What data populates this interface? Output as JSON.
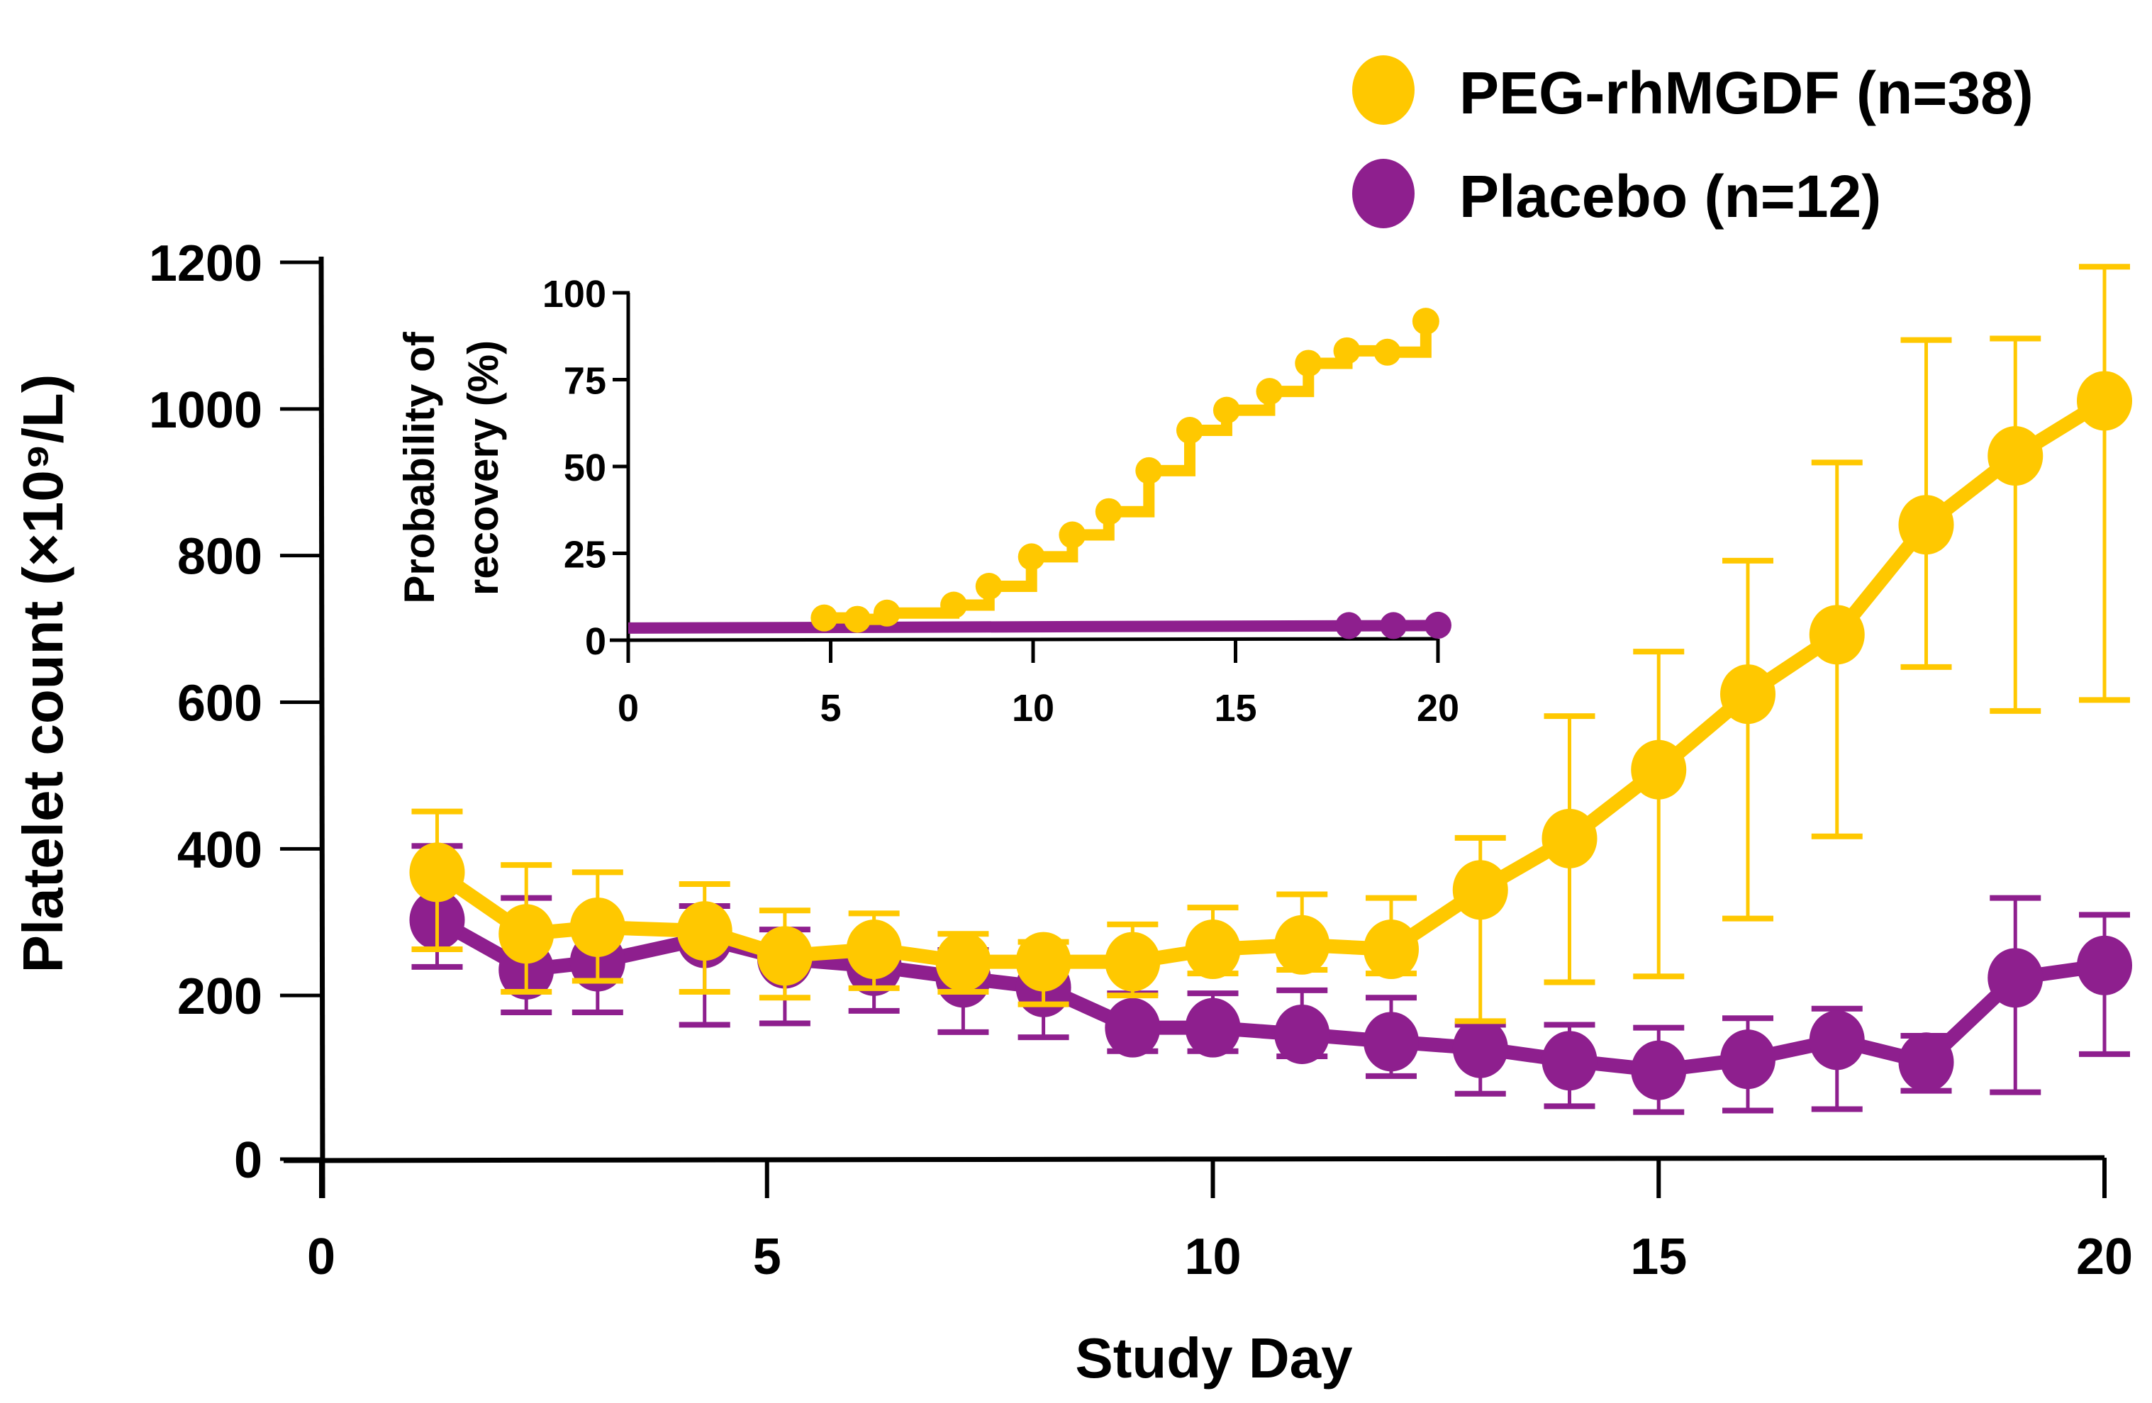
{
  "colors": {
    "peg": "#FFC800",
    "placebo": "#8E1F8E",
    "axis": "#000000"
  },
  "legend": {
    "position": "top-right",
    "items": [
      {
        "label": "PEG-rhMGDF (n=38)",
        "series": "peg",
        "marker": "filled-circle"
      },
      {
        "label": "Placebo (n=12)",
        "series": "placebo",
        "marker": "filled-circle"
      }
    ]
  },
  "chart_data": [
    {
      "id": "main",
      "type": "line",
      "title": "",
      "xlabel": "Study Day",
      "ylabel": "Platelet count (×10⁹/L)",
      "xlim": [
        0,
        20
      ],
      "ylim": [
        0,
        1200
      ],
      "xticks": [
        0,
        5,
        10,
        15,
        20
      ],
      "yticks": [
        0,
        200,
        400,
        600,
        800,
        1000,
        1200
      ],
      "grid": false,
      "error_bars": true,
      "series": [
        {
          "name": "PEG-rhMGDF (n=38)",
          "key": "peg",
          "x": [
            1.3,
            2.3,
            3.1,
            4.3,
            5.2,
            6.2,
            7.2,
            8.1,
            9.1,
            10.0,
            11.0,
            12.0,
            13.0,
            14.0,
            15.0,
            16.0,
            17.0,
            18.0,
            19.0,
            20.0
          ],
          "y": [
            368,
            284,
            293,
            288,
            254,
            263,
            246,
            246,
            246,
            263,
            269,
            263,
            344,
            414,
            508,
            611,
            692,
            842,
            936,
            1011
          ],
          "err_high": [
            451,
            378,
            368,
            352,
            316,
            312,
            284,
            273,
            297,
            320,
            338,
            333,
            415,
            581,
            669,
            793,
            927,
            1094,
            1096,
            1194
          ],
          "err_low": [
            263,
            205,
            220,
            205,
            197,
            210,
            205,
            188,
            200,
            230,
            235,
            230,
            165,
            218,
            226,
            305,
            417,
            648,
            588,
            603
          ]
        },
        {
          "name": "Placebo (n=12)",
          "key": "placebo",
          "x": [
            1.3,
            2.3,
            3.1,
            4.3,
            5.2,
            6.2,
            7.2,
            8.1,
            9.1,
            10.0,
            11.0,
            12.0,
            13.0,
            14.0,
            15.0,
            16.0,
            17.0,
            18.0,
            19.0,
            20.0
          ],
          "y": [
            303,
            235,
            246,
            278,
            250,
            240,
            224,
            211,
            156,
            156,
            147,
            137,
            128,
            111,
            98,
            113,
            139,
            109,
            224,
            241
          ],
          "err_high": [
            404,
            333,
            300,
            322,
            290,
            259,
            262,
            243,
            203,
            203,
            207,
            197,
            160,
            160,
            156,
            169,
            182,
            145,
            333,
            310
          ],
          "err_low": [
            239,
            177,
            177,
            160,
            162,
            179,
            150,
            143,
            124,
            124,
            117,
            90,
            66,
            49,
            41,
            43,
            45,
            70,
            68,
            120
          ]
        }
      ]
    },
    {
      "id": "inset",
      "type": "line",
      "subtype": "step",
      "title": "",
      "xlabel": "",
      "ylabel": "Probability of recovery (%)",
      "xlim": [
        0,
        20
      ],
      "ylim": [
        0,
        100
      ],
      "xticks": [
        0,
        5,
        10,
        15,
        20
      ],
      "yticks": [
        0,
        25,
        50,
        75,
        100
      ],
      "grid": false,
      "series": [
        {
          "name": "PEG-rhMGDF (n=38)",
          "key": "peg",
          "x": [
            4.84,
            5.66,
            6.39,
            8.04,
            8.91,
            9.96,
            10.97,
            11.87,
            12.86,
            13.87,
            14.78,
            15.84,
            16.8,
            17.75,
            18.75,
            19.7
          ],
          "y": [
            6.4,
            6.0,
            7.8,
            10.1,
            15.5,
            24.0,
            30.3,
            37.0,
            48.8,
            60.4,
            66.2,
            71.6,
            79.7,
            83.3,
            82.9,
            91.8
          ]
        },
        {
          "name": "Placebo (n=12)",
          "key": "placebo",
          "line_start": [
            0,
            3.5
          ],
          "line_end": [
            20,
            4.2
          ],
          "x": [
            17.8,
            18.9,
            20.0
          ],
          "y": [
            4.2,
            4.2,
            4.3
          ]
        }
      ]
    }
  ]
}
